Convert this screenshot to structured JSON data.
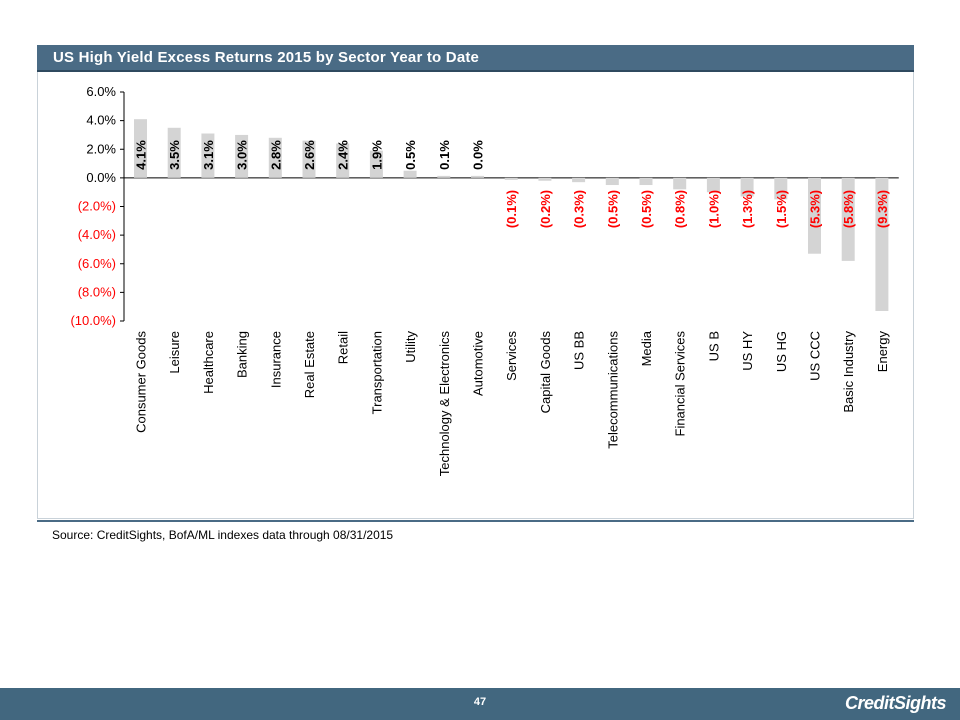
{
  "header": {
    "title": "US High Yield Excess Returns 2015 by Sector Year to Date"
  },
  "source": {
    "text": "Source: CreditSights, BofA/ML indexes     data through 08/31/2015"
  },
  "footer": {
    "page_number": "47",
    "brand": "CreditSights"
  },
  "colors": {
    "bar": "#d4d4d4",
    "positive_label": "#000000",
    "negative_label": "#ff0000",
    "header_bg": "#4a6b85",
    "footer_bg": "#42677f"
  },
  "chart_data": {
    "type": "bar",
    "title": "US High Yield Excess Returns 2015 by Sector Year to Date",
    "xlabel": "",
    "ylabel": "",
    "ylim": [
      -10,
      6
    ],
    "yticks": [
      6,
      4,
      2,
      0,
      -2,
      -4,
      -6,
      -8,
      -10
    ],
    "ytick_labels": [
      "6.0%",
      "4.0%",
      "2.0%",
      "0.0%",
      "(2.0%)",
      "(4.0%)",
      "(6.0%)",
      "(8.0%)",
      "(10.0%)"
    ],
    "grid": false,
    "legend": "none",
    "categories": [
      "Consumer Goods",
      "Leisure",
      "Healthcare",
      "Banking",
      "Insurance",
      "Real Estate",
      "Retail",
      "Transportation",
      "Utility",
      "Technology & Electronics",
      "Automotive",
      "Services",
      "Capital Goods",
      "US BB",
      "Telecommunications",
      "Media",
      "Financial Services",
      "US B",
      "US HY",
      "US HG",
      "US CCC",
      "Basic Industry",
      "Energy"
    ],
    "values": [
      4.1,
      3.5,
      3.1,
      3.0,
      2.8,
      2.6,
      2.4,
      1.9,
      0.5,
      0.1,
      0.0,
      -0.1,
      -0.2,
      -0.3,
      -0.5,
      -0.5,
      -0.8,
      -1.0,
      -1.3,
      -1.5,
      -5.3,
      -5.8,
      -9.3
    ],
    "data_labels": [
      "4.1%",
      "3.5%",
      "3.1%",
      "3.0%",
      "2.8%",
      "2.6%",
      "2.4%",
      "1.9%",
      "0.5%",
      "0.1%",
      "0.0%",
      "(0.1%)",
      "(0.2%)",
      "(0.3%)",
      "(0.5%)",
      "(0.5%)",
      "(0.8%)",
      "(1.0%)",
      "(1.3%)",
      "(1.5%)",
      "(5.3%)",
      "(5.8%)",
      "(9.3%)"
    ]
  }
}
